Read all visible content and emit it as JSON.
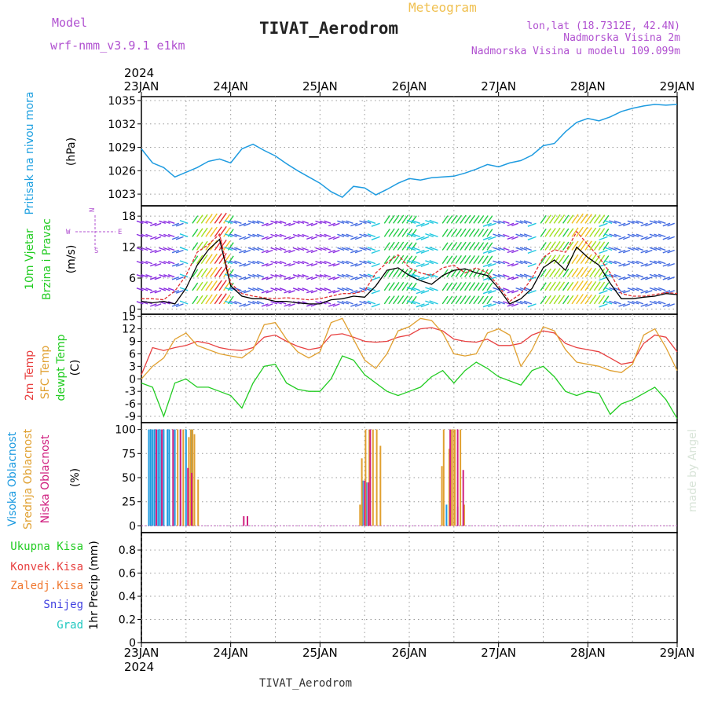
{
  "header": {
    "model_label": "Model",
    "model_name": "wrf-nmm_v3.9.1 e1km",
    "product": "Meteogram",
    "station": "TIVAT_Aerodrom",
    "coords": "lon,lat (18.7312E, 42.4N)",
    "elevation": "Nadmorska Visina 2m",
    "model_elevation": "Nadmorska Visina u modelu 109.099m",
    "credit": "made by Angel",
    "footer_station": "TIVAT_Aerodrom"
  },
  "time_axis": {
    "year": "2024",
    "labels": [
      "23JAN",
      "24JAN",
      "25JAN",
      "26JAN",
      "27JAN",
      "28JAN",
      "29JAN"
    ]
  },
  "colors": {
    "pressure": "#1e9be0",
    "temp2m": "#e84040",
    "sfc_temp": "#e0a030",
    "dewpoint": "#22cc22",
    "high_cloud": "#1e9be0",
    "mid_cloud": "#e0a030",
    "low_cloud": "#d02080",
    "wind_speed_line": "#000000",
    "wind_gust": "#e03030",
    "purple_text": "#b050d0"
  },
  "chart_data": [
    {
      "type": "line",
      "panel": "pressure",
      "ylabel_parts": [
        "Pritisak na nivou mora",
        "(hPa)"
      ],
      "yticks": [
        1023,
        1026,
        1029,
        1032,
        1035
      ],
      "ylim": [
        1021.5,
        1035.5
      ],
      "x_unit": "hours since 23JAN 00UTC",
      "series": [
        {
          "x": [
            0,
            3,
            6,
            9,
            12,
            15,
            18,
            21,
            24,
            27,
            30,
            33,
            36,
            39,
            42,
            45,
            48,
            51,
            54,
            57,
            60,
            63,
            66,
            69,
            72,
            75,
            78,
            81,
            84,
            87,
            90,
            93,
            96,
            99,
            102,
            105,
            108,
            111,
            114,
            117,
            120,
            123,
            126,
            129,
            132,
            135,
            138,
            141,
            144
          ],
          "values": [
            1028.8,
            1027.0,
            1026.4,
            1025.2,
            1025.8,
            1026.4,
            1027.2,
            1027.5,
            1027.0,
            1028.8,
            1029.4,
            1028.6,
            1027.9,
            1026.9,
            1026.0,
            1025.2,
            1024.4,
            1023.3,
            1022.6,
            1024.0,
            1023.8,
            1022.9,
            1023.6,
            1024.4,
            1025.0,
            1024.8,
            1025.1,
            1025.2,
            1025.3,
            1025.7,
            1026.2,
            1026.8,
            1026.5,
            1027.0,
            1027.3,
            1028.0,
            1029.2,
            1029.5,
            1031.0,
            1032.2,
            1032.7,
            1032.4,
            1032.9,
            1033.6,
            1034.0,
            1034.3,
            1034.5,
            1034.4,
            1034.5
          ]
        }
      ]
    },
    {
      "type": "line",
      "panel": "wind",
      "ylabel_parts": [
        "10m Vjetar",
        "Brzina i Pravac",
        "(m/s)"
      ],
      "direction_legend": [
        "N",
        "S",
        "W",
        "E"
      ],
      "yticks": [
        0,
        6,
        12,
        18
      ],
      "ylim": [
        -1,
        20
      ],
      "x_unit": "hours since 23JAN 00UTC",
      "series": [
        {
          "name": "speed",
          "x": [
            0,
            3,
            6,
            9,
            12,
            15,
            18,
            21,
            24,
            27,
            30,
            33,
            36,
            39,
            42,
            45,
            48,
            51,
            54,
            57,
            60,
            63,
            66,
            69,
            72,
            75,
            78,
            81,
            84,
            87,
            90,
            93,
            96,
            99,
            102,
            105,
            108,
            111,
            114,
            117,
            120,
            123,
            126,
            129,
            132,
            135,
            138,
            141,
            144
          ],
          "values": [
            1.5,
            1.2,
            1.5,
            1.0,
            4.0,
            8.5,
            11.5,
            13.5,
            4.5,
            2.5,
            2.0,
            2.0,
            1.5,
            1.5,
            1.2,
            1.0,
            1.0,
            1.8,
            2.0,
            2.5,
            2.3,
            4.5,
            7.5,
            8.0,
            6.5,
            5.5,
            4.8,
            6.5,
            7.5,
            7.8,
            7.0,
            6.5,
            4.0,
            1.0,
            2.0,
            4.0,
            8.0,
            9.5,
            7.5,
            12.0,
            10.0,
            8.5,
            5.0,
            2.0,
            2.0,
            2.3,
            2.5,
            3.0,
            2.8
          ]
        },
        {
          "name": "gust",
          "x": [
            0,
            3,
            6,
            9,
            12,
            15,
            18,
            21,
            24,
            27,
            30,
            33,
            36,
            39,
            42,
            45,
            48,
            51,
            54,
            57,
            60,
            63,
            66,
            69,
            72,
            75,
            78,
            81,
            84,
            87,
            90,
            93,
            96,
            99,
            102,
            105,
            108,
            111,
            114,
            117,
            120,
            123,
            126,
            129,
            132,
            135,
            138,
            141,
            144
          ],
          "values": [
            2.0,
            2.0,
            1.8,
            3.5,
            6.5,
            11.0,
            12.5,
            14.5,
            5.0,
            3.0,
            2.5,
            2.2,
            2.0,
            2.2,
            2.0,
            1.8,
            2.0,
            2.5,
            3.0,
            3.0,
            3.5,
            7.0,
            9.0,
            10.5,
            8.0,
            7.0,
            6.5,
            8.0,
            8.5,
            7.0,
            8.0,
            7.0,
            4.5,
            1.5,
            3.0,
            6.0,
            10.0,
            11.5,
            11.0,
            15.0,
            12.5,
            10.0,
            7.0,
            3.0,
            2.5,
            2.5,
            2.8,
            3.2,
            3.0
          ]
        }
      ]
    },
    {
      "type": "line",
      "panel": "temperature",
      "ylabel_parts": [
        "2m Temp",
        "SFC Temp",
        "dewpt Temp",
        "(C)"
      ],
      "yticks": [
        -9,
        -6,
        -3,
        0,
        3,
        6,
        9,
        12,
        15
      ],
      "ylim": [
        -10.5,
        15.5
      ],
      "x_unit": "hours since 23JAN 00UTC",
      "series": [
        {
          "name": "2m Temp",
          "x": [
            0,
            3,
            6,
            9,
            12,
            15,
            18,
            21,
            24,
            27,
            30,
            33,
            36,
            39,
            42,
            45,
            48,
            51,
            54,
            57,
            60,
            63,
            66,
            69,
            72,
            75,
            78,
            81,
            84,
            87,
            90,
            93,
            96,
            99,
            102,
            105,
            108,
            111,
            114,
            117,
            120,
            123,
            126,
            129,
            132,
            135,
            138,
            141,
            144
          ],
          "values": [
            1.0,
            7.5,
            6.8,
            7.5,
            8.0,
            9.0,
            8.5,
            7.5,
            7.0,
            6.8,
            7.5,
            10.0,
            10.5,
            9.0,
            7.8,
            7.0,
            7.5,
            10.5,
            10.8,
            10.0,
            9.0,
            8.8,
            9.0,
            10.0,
            10.5,
            12.0,
            12.3,
            11.5,
            9.5,
            9.0,
            8.8,
            9.5,
            8.0,
            8.0,
            8.5,
            10.5,
            11.5,
            11.0,
            8.5,
            7.5,
            7.0,
            6.5,
            5.0,
            3.5,
            4.0,
            8.5,
            10.5,
            10.0,
            6.5
          ]
        },
        {
          "name": "SFC Temp",
          "x": [
            0,
            3,
            6,
            9,
            12,
            15,
            18,
            21,
            24,
            27,
            30,
            33,
            36,
            39,
            42,
            45,
            48,
            51,
            54,
            57,
            60,
            63,
            66,
            69,
            72,
            75,
            78,
            81,
            84,
            87,
            90,
            93,
            96,
            99,
            102,
            105,
            108,
            111,
            114,
            117,
            120,
            123,
            126,
            129,
            132,
            135,
            138,
            141,
            144
          ],
          "values": [
            0.0,
            3.0,
            5.0,
            9.5,
            11.0,
            8.0,
            7.0,
            6.0,
            5.5,
            5.0,
            7.0,
            13.0,
            13.5,
            9.5,
            6.5,
            5.0,
            6.5,
            13.5,
            14.5,
            9.5,
            4.5,
            2.5,
            6.0,
            11.5,
            12.5,
            14.5,
            14.0,
            11.0,
            6.0,
            5.5,
            6.0,
            11.0,
            12.0,
            10.5,
            3.0,
            7.0,
            12.5,
            11.5,
            7.0,
            4.0,
            3.5,
            3.0,
            2.0,
            1.5,
            3.5,
            10.5,
            12.0,
            7.5,
            2.0
          ]
        },
        {
          "name": "dewpt Temp",
          "x": [
            0,
            3,
            6,
            9,
            12,
            15,
            18,
            21,
            24,
            27,
            30,
            33,
            36,
            39,
            42,
            45,
            48,
            51,
            54,
            57,
            60,
            63,
            66,
            69,
            72,
            75,
            78,
            81,
            84,
            87,
            90,
            93,
            96,
            99,
            102,
            105,
            108,
            111,
            114,
            117,
            120,
            123,
            126,
            129,
            132,
            135,
            138,
            141,
            144
          ],
          "values": [
            -1.0,
            -2.0,
            -9.0,
            -1.0,
            0.0,
            -2.0,
            -2.0,
            -3.0,
            -4.0,
            -7.0,
            -1.0,
            3.0,
            3.5,
            -1.0,
            -2.5,
            -3.0,
            -3.0,
            0.0,
            5.5,
            4.5,
            1.0,
            -1.0,
            -3.0,
            -4.0,
            -3.0,
            -2.0,
            0.5,
            2.0,
            -1.0,
            2.0,
            4.0,
            2.5,
            0.5,
            -0.5,
            -1.5,
            2.0,
            3.0,
            0.5,
            -3.0,
            -4.0,
            -3.0,
            -3.5,
            -8.5,
            -6.0,
            -5.0,
            -3.5,
            -2.0,
            -5.0,
            -9.5
          ]
        }
      ]
    },
    {
      "type": "bar",
      "panel": "cloud",
      "ylabel_parts": [
        "Visoka Oblacnost",
        "Srednja Oblacnost",
        "Niska Oblacnost",
        "(%)"
      ],
      "yticks": [
        0,
        25,
        50,
        75,
        100
      ],
      "ylim": [
        -7,
        107
      ],
      "x_unit": "hours since 23JAN 00UTC",
      "series": [
        {
          "name": "Visoka Oblacnost",
          "x": [
            2,
            2.5,
            3,
            3.5,
            4,
            4.5,
            5,
            5.5,
            6,
            7,
            7.5,
            9,
            10.5,
            12,
            13.5,
            59.5,
            60.5,
            82,
            85
          ],
          "values": [
            100,
            100,
            100,
            100,
            100,
            100,
            100,
            95,
            100,
            100,
            100,
            100,
            100,
            100,
            100,
            47,
            45,
            22,
            20
          ]
        },
        {
          "name": "Srednja Oblacnost",
          "x": [
            9.5,
            11,
            12.5,
            13,
            13.5,
            14,
            15,
            58.5,
            59,
            60,
            61,
            62,
            63,
            64,
            80.5,
            81,
            82.5,
            83,
            83.5,
            84,
            85.5,
            86.5
          ],
          "values": [
            100,
            100,
            92,
            100,
            100,
            95,
            48,
            22,
            70,
            100,
            100,
            100,
            100,
            83,
            62,
            100,
            80,
            100,
            100,
            100,
            100,
            22
          ]
        },
        {
          "name": "Niska Oblacnost",
          "x": [
            3.5,
            5,
            8,
            10,
            12,
            13,
            27,
            28,
            59.5,
            60.5,
            61,
            82.5,
            84.5,
            86
          ],
          "values": [
            100,
            100,
            100,
            100,
            60,
            55,
            10,
            10,
            47,
            45,
            100,
            100,
            100,
            58
          ]
        }
      ]
    },
    {
      "type": "bar",
      "panel": "precip",
      "ylabel_parts": [
        "1hr Precip (mm)"
      ],
      "legend": [
        "Ukupna Kisa",
        "Konvek.Kisa",
        "Zaledj.Kisa",
        "Snijeg",
        "Grad"
      ],
      "yticks": [
        0,
        0.2,
        0.4,
        0.6,
        0.8
      ],
      "ylim": [
        0,
        0.95
      ],
      "series": []
    }
  ]
}
